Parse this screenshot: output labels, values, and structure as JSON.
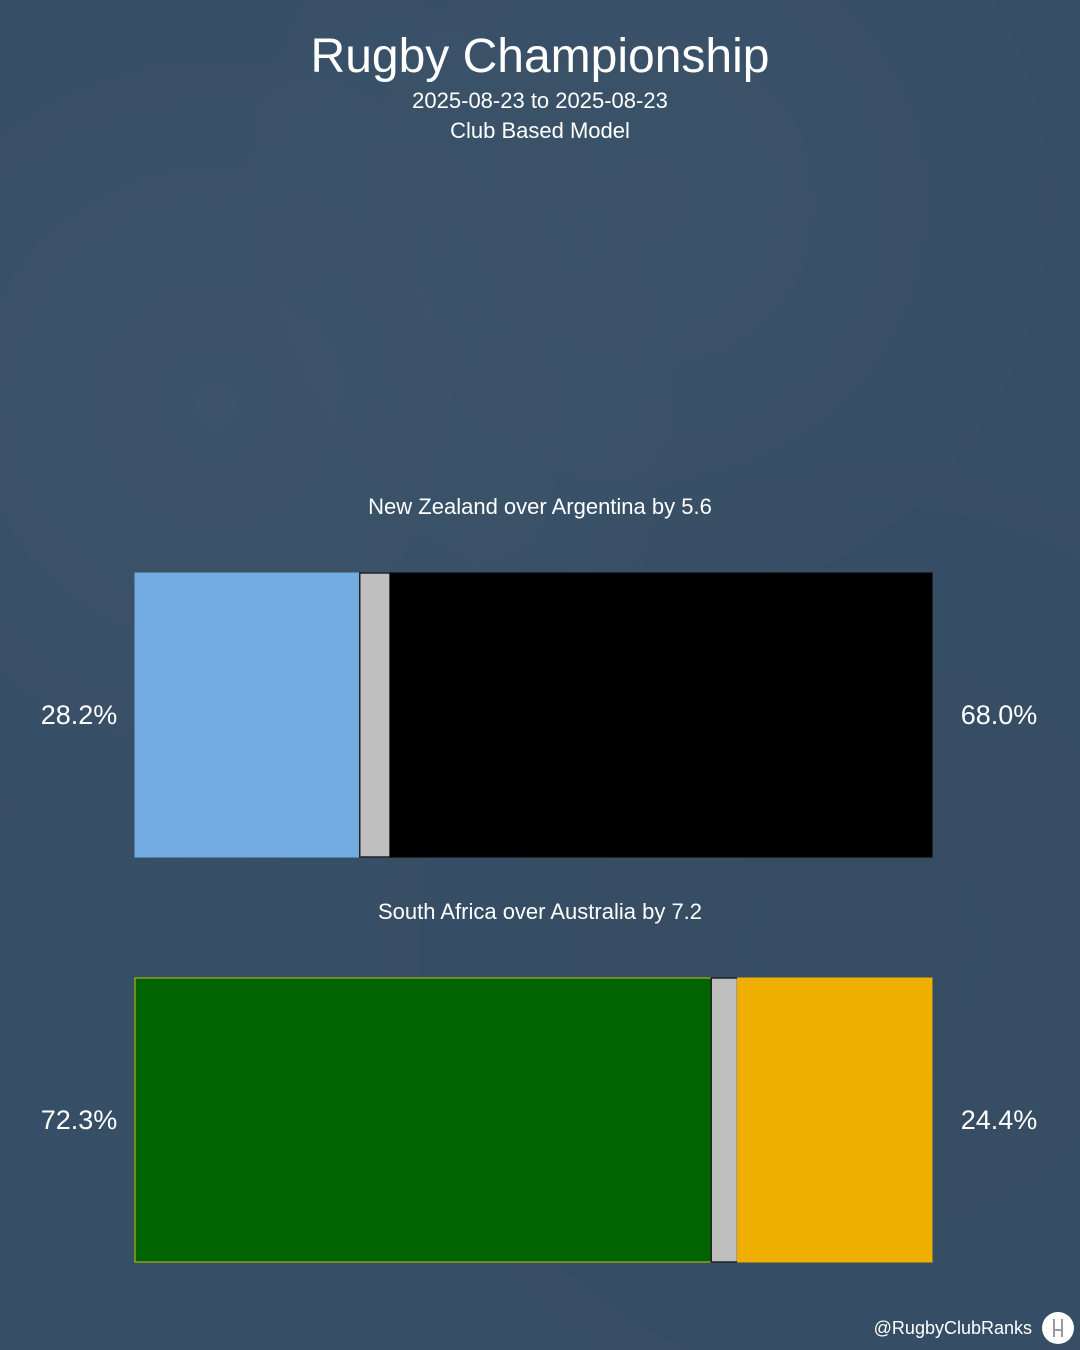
{
  "header": {
    "title": "Rugby Championship",
    "date_range": "2025-08-23 to 2025-08-23",
    "model": "Club Based Model"
  },
  "footer": {
    "handle": "@RugbyClubRanks",
    "logo_icon": "rugby-posts-icon"
  },
  "colors": {
    "background": "#374f66",
    "draw": "#bfbfbf"
  },
  "chart_data": {
    "type": "bar",
    "orientation": "horizontal-stacked",
    "matches": [
      {
        "label": "New Zealand over Argentina by 5.6",
        "left_label": "28.2%",
        "right_label": "68.0%",
        "left_pct": 28.2,
        "draw_pct": 3.8,
        "right_pct": 68.0,
        "left_color": "#73ace0",
        "right_color": "#000000",
        "left_border": "#73ace0",
        "right_border": "#000000"
      },
      {
        "label": "South Africa over Australia by 7.2",
        "left_label": "72.3%",
        "right_label": "24.4%",
        "left_pct": 72.3,
        "draw_pct": 3.3,
        "right_pct": 24.4,
        "left_color": "#006400",
        "right_color": "#eeaf00",
        "left_border": "#c6c600",
        "right_border": "#eeaf00"
      }
    ]
  }
}
